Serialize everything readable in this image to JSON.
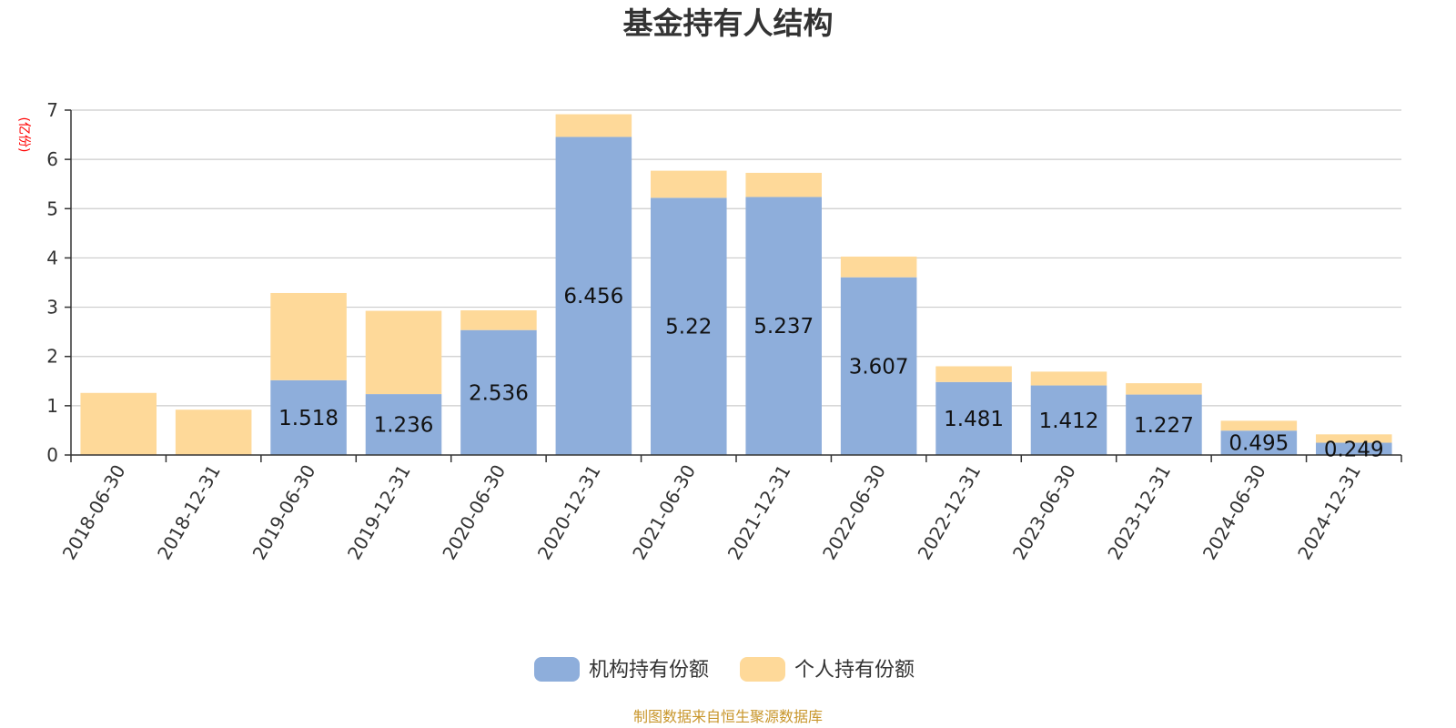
{
  "chart_data": {
    "type": "bar",
    "stacked": true,
    "title": "基金持有人结构",
    "unit_label": "(亿份)",
    "categories": [
      "2018-06-30",
      "2018-12-31",
      "2019-06-30",
      "2019-12-31",
      "2020-06-30",
      "2020-12-31",
      "2021-06-30",
      "2021-12-31",
      "2022-06-30",
      "2022-12-31",
      "2023-06-30",
      "2023-12-31",
      "2024-06-30",
      "2024-12-31"
    ],
    "series": [
      {
        "name": "机构持有份额",
        "color": "#8eaedb",
        "values": [
          0,
          0,
          1.518,
          1.236,
          2.536,
          6.456,
          5.22,
          5.237,
          3.607,
          1.481,
          1.412,
          1.227,
          0.495,
          0.249
        ],
        "labels": [
          "",
          "",
          "1.518",
          "1.236",
          "2.536",
          "6.456",
          "5.22",
          "5.237",
          "3.607",
          "1.481",
          "1.412",
          "1.227",
          "0.495",
          "0.249"
        ]
      },
      {
        "name": "个人持有份额",
        "color": "#fed999",
        "values": [
          1.26,
          0.92,
          1.77,
          1.69,
          0.4,
          0.46,
          0.55,
          0.49,
          0.42,
          0.32,
          0.28,
          0.23,
          0.2,
          0.17
        ]
      }
    ],
    "ylim": [
      0,
      7
    ],
    "yticks": [
      "0",
      "1",
      "2",
      "3",
      "4",
      "5",
      "6",
      "7"
    ],
    "grid": true,
    "legend_position": "bottom-center"
  },
  "footer": {
    "source": "制图数据来自恒生聚源数据库"
  }
}
